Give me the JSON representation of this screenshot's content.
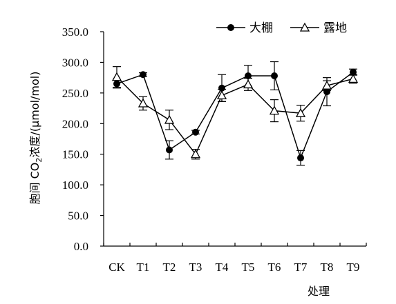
{
  "chart_data": {
    "type": "line",
    "categories": [
      "CK",
      "T1",
      "T2",
      "T3",
      "T4",
      "T5",
      "T6",
      "T7",
      "T8",
      "T9"
    ],
    "ylim": [
      0,
      350
    ],
    "yticks": [
      "0.0",
      "50.0",
      "100.0",
      "150.0",
      "200.0",
      "250.0",
      "300.0",
      "350.0"
    ],
    "ylabel_prefix": "胞间 CO",
    "ylabel_sub": "2",
    "ylabel_suffix": "浓度/(μmol/mol)",
    "xlabel": "处理",
    "legend_position": "top-right",
    "series": [
      {
        "name": "大棚",
        "marker": "filled-circle",
        "values": [
          265,
          280,
          157,
          186,
          258,
          278,
          278,
          144,
          252,
          284
        ],
        "errors": [
          7,
          3,
          15,
          3,
          22,
          17,
          23,
          12,
          23,
          5
        ]
      },
      {
        "name": "露地",
        "marker": "open-triangle",
        "values": [
          276,
          233,
          206,
          150,
          246,
          264,
          221,
          217,
          262,
          273
        ],
        "errors": [
          17,
          11,
          16,
          8,
          10,
          10,
          18,
          13,
          8,
          7
        ]
      }
    ]
  }
}
